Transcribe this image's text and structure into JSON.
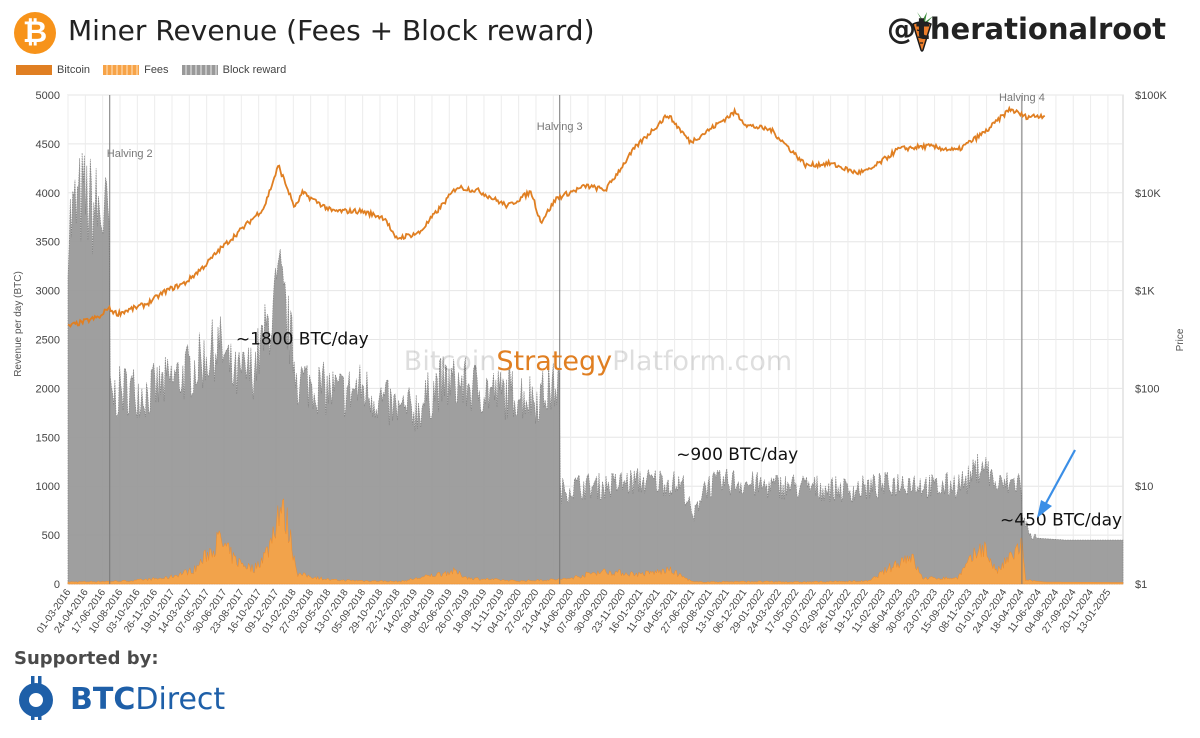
{
  "header": {
    "logo_glyph": "₿",
    "title": "Miner Revenue (Fees + Block reward)",
    "handle": "@therationalroot"
  },
  "colors": {
    "bitcoin": "#E07F22",
    "fees": "#F7A347",
    "block_reward": "#9A9A9A",
    "halving_line": "#777777",
    "arrow": "#3A8EE6"
  },
  "footer": {
    "supported_label": "Supported by:",
    "sponsor_bold": "BTC",
    "sponsor_rest": "Direct",
    "sponsor_icon": "btcdirect-bitcoin-icon"
  },
  "chart_data": {
    "type": "area",
    "watermark": {
      "part1": "Bitcoin",
      "part2": "Strategy",
      "part3": "Platform.com"
    },
    "legend": [
      "Bitcoin",
      "Fees",
      "Block reward"
    ],
    "legend_position": "top-left",
    "ylabel": "Revenue per day (BTC)",
    "y2label": "Price",
    "ylim": [
      0,
      5000
    ],
    "y_ticks": [
      0,
      500,
      1000,
      1500,
      2000,
      2500,
      3000,
      3500,
      4000,
      4500,
      5000
    ],
    "y2_scale": "log",
    "y2lim": [
      1,
      100000
    ],
    "y2_ticks": [
      {
        "v": 1,
        "label": "$1"
      },
      {
        "v": 10,
        "label": "$10"
      },
      {
        "v": 100,
        "label": "$100"
      },
      {
        "v": 1000,
        "label": "$1K"
      },
      {
        "v": 10000,
        "label": "$10K"
      },
      {
        "v": 100000,
        "label": "$100K"
      }
    ],
    "grid": true,
    "x_range": [
      "2016-03-01",
      "2025-03-01"
    ],
    "x_ticks": [
      "01-03-2016",
      "24-04-2016",
      "17-06-2016",
      "10-08-2016",
      "03-10-2016",
      "26-11-2016",
      "19-01-2017",
      "14-03-2017",
      "07-05-2017",
      "30-06-2017",
      "23-08-2017",
      "16-10-2017",
      "09-12-2017",
      "01-02-2018",
      "27-03-2018",
      "20-05-2018",
      "13-07-2018",
      "05-09-2018",
      "29-10-2018",
      "22-12-2018",
      "14-02-2019",
      "09-04-2019",
      "02-06-2019",
      "26-07-2019",
      "18-09-2019",
      "11-11-2019",
      "04-01-2020",
      "27-02-2020",
      "21-04-2020",
      "14-06-2020",
      "07-08-2020",
      "30-09-2020",
      "23-11-2020",
      "16-01-2021",
      "11-03-2021",
      "04-05-2021",
      "27-06-2021",
      "20-08-2021",
      "13-10-2021",
      "06-12-2021",
      "29-01-2022",
      "24-03-2022",
      "17-05-2022",
      "10-07-2022",
      "02-09-2022",
      "26-10-2022",
      "19-12-2022",
      "11-02-2023",
      "06-04-2023",
      "30-05-2023",
      "23-07-2023",
      "15-09-2023",
      "08-11-2023",
      "01-01-2024",
      "24-02-2024",
      "18-04-2024",
      "11-06-2024",
      "04-08-2024",
      "27-09-2024",
      "20-11-2024",
      "13-01-2025"
    ],
    "halvings": [
      {
        "date": "2016-07-09",
        "label": "Halving 2"
      },
      {
        "date": "2020-05-11",
        "label": "Halving 3"
      },
      {
        "date": "2024-04-20",
        "label": "Halving 4"
      }
    ],
    "annotations": [
      {
        "text": "~1800 BTC/day",
        "x": "2018-03-01",
        "y": 2450
      },
      {
        "text": "~900 BTC/day",
        "x": "2021-11-15",
        "y": 1270
      },
      {
        "text": "~450 BTC/day",
        "x": "2024-08-20",
        "y": 600
      }
    ],
    "series": [
      {
        "name": "Block reward",
        "x": [
          "2016-03-01",
          "2016-04-15",
          "2016-06-01",
          "2016-07-08",
          "2016-07-10",
          "2016-09-01",
          "2016-11-01",
          "2017-01-01",
          "2017-03-01",
          "2017-05-01",
          "2017-06-15",
          "2017-08-01",
          "2017-10-01",
          "2017-12-01",
          "2017-12-20",
          "2018-02-15",
          "2018-05-01",
          "2018-07-01",
          "2018-09-01",
          "2018-11-15",
          "2019-01-01",
          "2019-03-01",
          "2019-05-01",
          "2019-07-01",
          "2019-09-01",
          "2019-11-01",
          "2020-01-01",
          "2020-03-01",
          "2020-05-10",
          "2020-05-12",
          "2020-07-01",
          "2020-10-01",
          "2021-01-01",
          "2021-04-01",
          "2021-06-01",
          "2021-07-01",
          "2021-08-01",
          "2021-11-01",
          "2022-02-01",
          "2022-05-01",
          "2022-08-01",
          "2022-11-01",
          "2023-02-01",
          "2023-05-01",
          "2023-08-01",
          "2023-11-01",
          "2023-12-20",
          "2024-02-01",
          "2024-04-19",
          "2024-04-21",
          "2024-06-01",
          "2024-09-01",
          "2024-12-01",
          "2025-03-01"
        ],
        "values": [
          3650,
          3950,
          3800,
          3700,
          1900,
          2000,
          1950,
          2050,
          2150,
          2300,
          2450,
          2100,
          2200,
          2800,
          3100,
          2100,
          2000,
          1950,
          2000,
          1850,
          1750,
          1800,
          2050,
          2050,
          2000,
          1950,
          1950,
          1900,
          2050,
          950,
          1000,
          1000,
          1050,
          1050,
          1000,
          650,
          1000,
          1050,
          1000,
          1000,
          980,
          960,
          1000,
          1050,
          980,
          1050,
          1250,
          1000,
          1050,
          650,
          470,
          450,
          450,
          450
        ]
      },
      {
        "name": "Fees",
        "x": [
          "2016-03-01",
          "2016-06-01",
          "2016-09-01",
          "2017-01-01",
          "2017-04-01",
          "2017-05-20",
          "2017-06-15",
          "2017-08-01",
          "2017-10-01",
          "2017-11-15",
          "2017-12-20",
          "2018-01-15",
          "2018-02-15",
          "2018-06-01",
          "2019-01-01",
          "2019-06-15",
          "2019-08-01",
          "2020-01-01",
          "2020-06-01",
          "2020-09-15",
          "2021-01-15",
          "2021-04-20",
          "2021-07-01",
          "2022-01-01",
          "2022-06-01",
          "2023-01-01",
          "2023-05-08",
          "2023-06-15",
          "2023-10-01",
          "2023-12-20",
          "2024-02-01",
          "2024-04-20",
          "2024-05-01",
          "2024-07-01",
          "2025-03-01"
        ],
        "values": [
          20,
          25,
          30,
          60,
          150,
          350,
          450,
          250,
          150,
          350,
          800,
          600,
          100,
          40,
          25,
          130,
          60,
          30,
          50,
          130,
          100,
          140,
          20,
          25,
          20,
          30,
          300,
          60,
          60,
          400,
          120,
          400,
          40,
          20,
          15
        ]
      },
      {
        "name": "Bitcoin",
        "x": [
          "2016-03-01",
          "2016-06-15",
          "2016-07-01",
          "2016-08-01",
          "2016-11-01",
          "2017-01-01",
          "2017-03-01",
          "2017-05-01",
          "2017-06-15",
          "2017-09-01",
          "2017-11-01",
          "2017-12-17",
          "2018-02-06",
          "2018-03-01",
          "2018-06-01",
          "2018-09-01",
          "2018-11-15",
          "2018-12-15",
          "2019-03-01",
          "2019-06-26",
          "2019-09-01",
          "2019-12-01",
          "2020-02-12",
          "2020-03-13",
          "2020-05-01",
          "2020-08-01",
          "2020-10-01",
          "2021-01-01",
          "2021-04-13",
          "2021-06-22",
          "2021-08-01",
          "2021-11-08",
          "2021-12-15",
          "2022-03-01",
          "2022-06-18",
          "2022-09-01",
          "2022-11-21",
          "2023-01-01",
          "2023-04-01",
          "2023-07-01",
          "2023-10-01",
          "2024-01-01",
          "2024-03-14",
          "2024-05-01",
          "2024-06-30"
        ],
        "values": [
          430,
          550,
          670,
          580,
          730,
          1000,
          1200,
          1800,
          2600,
          4500,
          7000,
          19000,
          7000,
          10000,
          6500,
          6500,
          5500,
          3400,
          3900,
          11500,
          10500,
          7300,
          10300,
          5000,
          8800,
          11800,
          10700,
          29000,
          63000,
          33000,
          40000,
          67000,
          49000,
          44000,
          19000,
          20000,
          16000,
          17000,
          28000,
          30000,
          27000,
          43000,
          72000,
          60000,
          62000
        ]
      }
    ]
  }
}
